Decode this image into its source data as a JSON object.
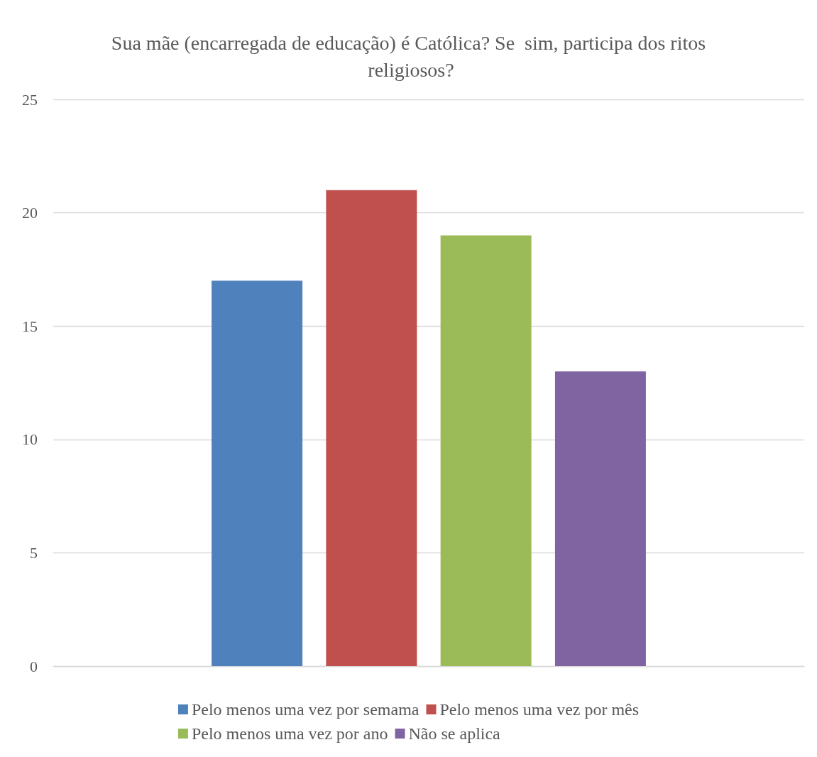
{
  "chart_data": {
    "type": "bar",
    "title": "Sua mãe (encarregada de educação) é Católica? Se  sim, participa dos ritos religiosos?",
    "categories": [
      null
    ],
    "series": [
      {
        "name": "Pelo menos uma vez por semama",
        "color": "#4f81bd",
        "values": [
          17
        ]
      },
      {
        "name": "Pelo menos uma vez por mês",
        "color": "#c0504d",
        "values": [
          21
        ]
      },
      {
        "name": "Pelo menos uma vez por ano",
        "color": "#9bbb59",
        "values": [
          19
        ]
      },
      {
        "name": "Não se aplica",
        "color": "#8064a2",
        "values": [
          13
        ]
      }
    ],
    "ylim": [
      0,
      25
    ],
    "yticks": [
      0,
      5,
      10,
      15,
      20,
      25
    ],
    "grid": "y",
    "legend": "bottom"
  }
}
